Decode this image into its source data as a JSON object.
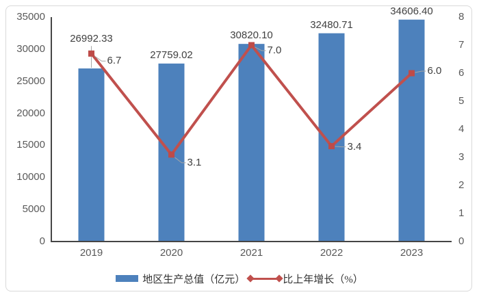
{
  "chart_data": {
    "type": "bar",
    "combo": "bar+line",
    "categories": [
      "2019",
      "2020",
      "2021",
      "2022",
      "2023"
    ],
    "series": [
      {
        "name": "地区生产总值（亿元）",
        "type": "bar",
        "axis": "left",
        "values": [
          26992.33,
          27759.02,
          30820.1,
          32480.71,
          34606.4
        ],
        "labels": [
          "26992.33",
          "27759.02",
          "30820.10",
          "32480.71",
          "34606.40"
        ]
      },
      {
        "name": "比上年增长（%）",
        "type": "line",
        "axis": "right",
        "values": [
          6.7,
          3.1,
          7.0,
          3.4,
          6.0
        ],
        "labels": [
          "6.7",
          "3.1",
          "7.0",
          "3.4",
          "6.0"
        ]
      }
    ],
    "left_axis": {
      "min": 0,
      "max": 35000,
      "step": 5000,
      "ticks": [
        "35000",
        "30000",
        "25000",
        "20000",
        "15000",
        "10000",
        "5000",
        "0"
      ]
    },
    "right_axis": {
      "min": 0,
      "max": 8,
      "step": 1,
      "ticks": [
        "8",
        "7",
        "6",
        "5",
        "4",
        "3",
        "2",
        "1",
        "0"
      ]
    },
    "title": "",
    "xlabel": "",
    "ylabel": "",
    "grid": false,
    "legend_position": "bottom",
    "layout_hints": {
      "displaced_bar_label_index": 0,
      "line_label_dy": [
        11,
        12,
        8,
        1,
        -3
      ]
    }
  },
  "legend": {
    "items": [
      {
        "label": "地区生产总值（亿元）",
        "marker": "bar-swatch"
      },
      {
        "label": "比上年增长（%）",
        "marker": "line-with-diamonds"
      }
    ]
  },
  "colors": {
    "bar": "#4D81BC",
    "line": "#C0504D",
    "marker": "#BE4B48",
    "axis_text": "#595959",
    "label_text": "#404040",
    "axis_line": "#454545",
    "leader_line": "#A6A6A6",
    "border": "#D9D9D9",
    "background": "#FFFFFF"
  }
}
